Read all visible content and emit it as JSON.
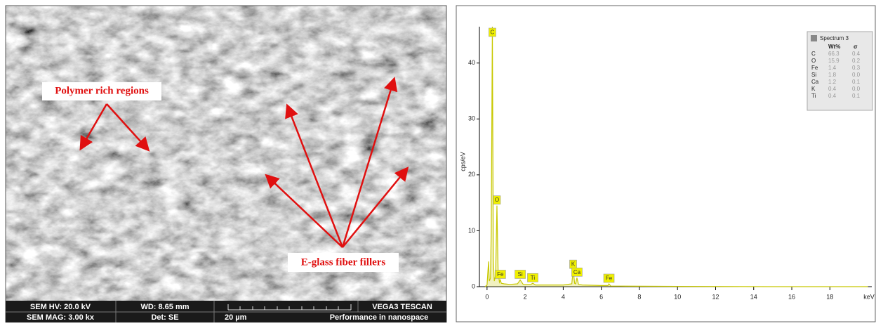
{
  "sem_image": {
    "annotations": [
      "Polymer rich regions",
      "E-glass fiber fillers"
    ],
    "info_bar": {
      "row1": [
        "SEM HV: 20.0 kV",
        "WD: 8.65 mm",
        "VEGA3 TESCAN"
      ],
      "row2": [
        "SEM MAG: 3.00 kx",
        "Det: SE",
        "20 µm",
        "Performance in nanospace"
      ]
    }
  },
  "chart_data": {
    "type": "line",
    "ylabel": "cps/eV",
    "xlabel": "keV",
    "x": [
      -0.1,
      0,
      0.08,
      0.12,
      0.18,
      0.22,
      0.28,
      0.33,
      0.38,
      0.45,
      0.52,
      0.58,
      0.65,
      0.7,
      0.75,
      0.9,
      1.2,
      1.6,
      1.74,
      1.9,
      2.3,
      2.4,
      2.55,
      3,
      4,
      4.45,
      4.52,
      4.6,
      4.65,
      4.72,
      4.8,
      5,
      6,
      6.35,
      6.4,
      6.5,
      7,
      10,
      15,
      20
    ],
    "series": [
      {
        "name": "Spectrum 3",
        "color": "#c8c800",
        "values": [
          0,
          0.3,
          4.5,
          1,
          1.5,
          10,
          46.5,
          5,
          1,
          2,
          14.5,
          3,
          0.8,
          1.2,
          0.6,
          0.5,
          0.4,
          0.5,
          1.2,
          0.4,
          0.4,
          0.6,
          0.3,
          0.3,
          0.3,
          0.5,
          3,
          0.6,
          0.5,
          1.6,
          0.4,
          0.3,
          0.2,
          0.2,
          0.5,
          0.1,
          0.1,
          0.05,
          0,
          0
        ]
      }
    ],
    "xlim": [
      -0.4,
      20.2
    ],
    "ylim": [
      0,
      46.5
    ],
    "xticks": [
      0,
      2,
      4,
      6,
      8,
      10,
      12,
      14,
      16,
      18
    ],
    "yticks": [
      0,
      10,
      20,
      30,
      40
    ],
    "peak_labels": [
      {
        "label": "C",
        "x": 0.28
      },
      {
        "label": "O",
        "x": 0.52
      },
      {
        "label": "Fe",
        "x": 0.7
      },
      {
        "label": "Si",
        "x": 1.74
      },
      {
        "label": "Ti",
        "x": 2.4
      },
      {
        "label": "K",
        "x": 4.52
      },
      {
        "label": "Ca",
        "x": 4.72
      },
      {
        "label": "Fe",
        "x": 6.4
      }
    ],
    "legend_table": {
      "header": [
        "Wt%",
        "σ"
      ],
      "rows": [
        [
          "C",
          "66.3",
          "0.4"
        ],
        [
          "O",
          "15.9",
          "0.2"
        ],
        [
          "Fe",
          "1.4",
          "0.3"
        ],
        [
          "Si",
          "1.8",
          "0.0"
        ],
        [
          "Ca",
          "1.2",
          "0.1"
        ],
        [
          "K",
          "0.4",
          "0.0"
        ],
        [
          "Ti",
          "0.4",
          "0.1"
        ]
      ]
    }
  }
}
